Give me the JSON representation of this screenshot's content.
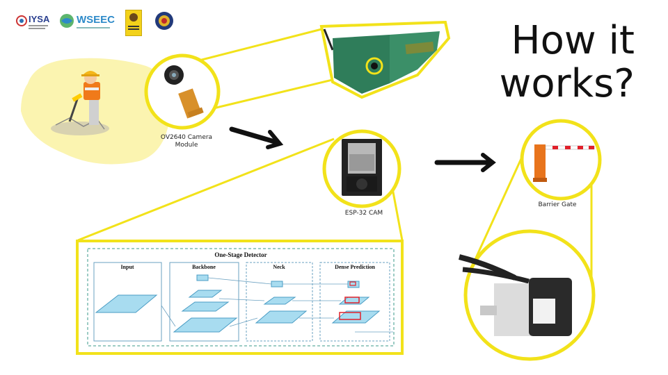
{
  "slide": {
    "title_line1": "How it",
    "title_line2": "works?"
  },
  "logos": {
    "iysa": "IYSA",
    "wseec": "WSEEC"
  },
  "captions": {
    "camera_module_line1": "OV2640 Camera",
    "camera_module_line2": "Module",
    "esp32": "ESP-32 CAM",
    "barrier": "Barrier Gate"
  },
  "detector": {
    "title": "One-Stage Detector",
    "input": "Input",
    "backbone": "Backbone",
    "neck": "Neck",
    "dense": "Dense Prediction"
  },
  "colors": {
    "accent_yellow": "#f2e21a",
    "soft_yellow": "#fbf4b0",
    "device_green": "#2f7d5a",
    "block_blue": "#a8dcf0",
    "barrier_orange": "#e8741c",
    "detection_red": "#e0202a"
  }
}
